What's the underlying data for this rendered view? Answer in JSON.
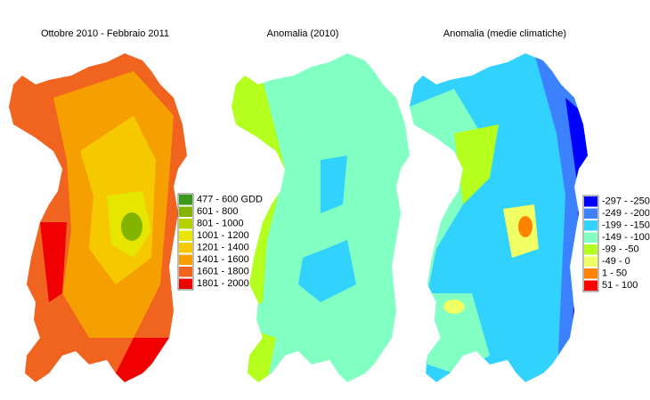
{
  "maps": [
    {
      "title": "Ottobre 2010 - Febbraio 2011",
      "legend": [
        {
          "label": "477 - 600 GDD",
          "color": "#3c9a1a"
        },
        {
          "label": "601 - 800",
          "color": "#82b400"
        },
        {
          "label": "801 - 1000",
          "color": "#b4d200"
        },
        {
          "label": "1001 - 1200",
          "color": "#e6e600"
        },
        {
          "label": "1201 - 1400",
          "color": "#f5c800"
        },
        {
          "label": "1401 - 1600",
          "color": "#f5a000"
        },
        {
          "label": "1601 - 1800",
          "color": "#f06420"
        },
        {
          "label": "1801 - 2000",
          "color": "#f00000"
        }
      ]
    },
    {
      "title": "Anomalia (2010)"
    },
    {
      "title": "Anomalia (medie climatiche)",
      "legend": [
        {
          "label": "-297 - -250",
          "color": "#0000ff"
        },
        {
          "label": "-249 - -200",
          "color": "#3c82ff"
        },
        {
          "label": "-199 - -150",
          "color": "#32d2ff"
        },
        {
          "label": "-149 - -100",
          "color": "#82ffc3"
        },
        {
          "label": "-99 - -50",
          "color": "#b4ff1e"
        },
        {
          "label": "-49 - 0",
          "color": "#f0ff64"
        },
        {
          "label": "1 - 50",
          "color": "#ff8200"
        },
        {
          "label": "51 - 100",
          "color": "#ff0000"
        }
      ]
    }
  ]
}
